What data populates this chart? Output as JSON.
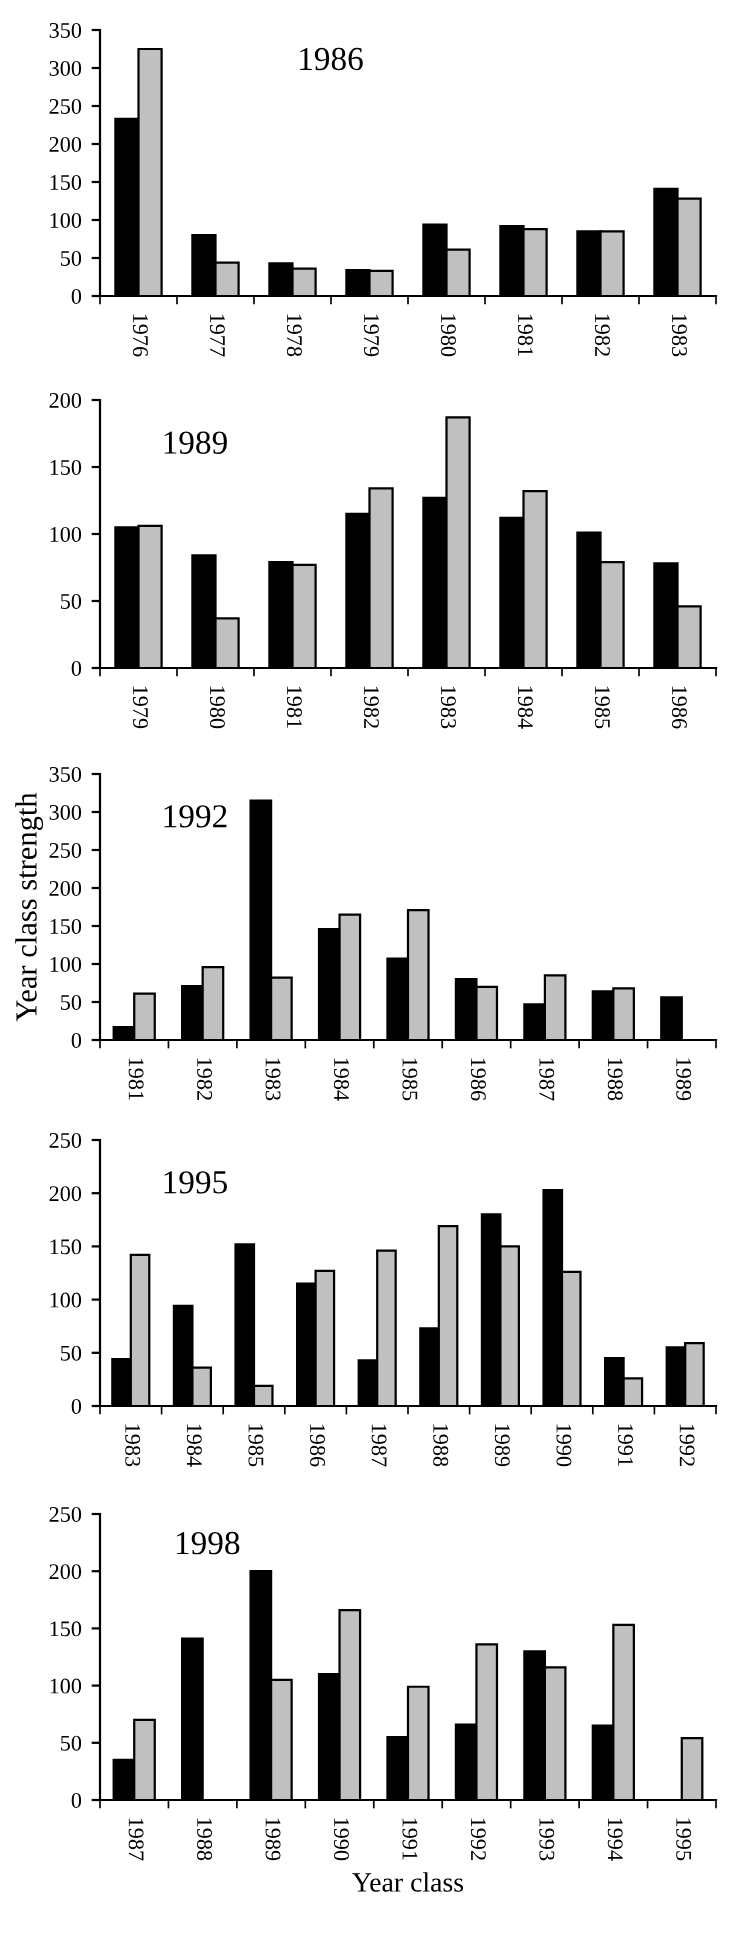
{
  "chart_data": [
    {
      "type": "bar",
      "title": "1986",
      "categories": [
        "1976",
        "1977",
        "1978",
        "1979",
        "1980",
        "1981",
        "1982",
        "1983"
      ],
      "series": [
        {
          "color": "#000000",
          "values": [
            233,
            80,
            43,
            34,
            94,
            92,
            85,
            141
          ]
        },
        {
          "color": "#c0c0c0",
          "values": [
            325,
            44,
            36,
            33,
            61,
            88,
            85,
            128
          ]
        }
      ],
      "ylim": [
        0,
        350
      ],
      "yticks": [
        0,
        50,
        100,
        150,
        200,
        250,
        300,
        350
      ]
    },
    {
      "type": "bar",
      "title": "1989",
      "categories": [
        "1979",
        "1980",
        "1981",
        "1982",
        "1983",
        "1984",
        "1985",
        "1986"
      ],
      "series": [
        {
          "color": "#000000",
          "values": [
            105,
            84,
            79,
            115,
            127,
            112,
            101,
            78
          ]
        },
        {
          "color": "#c0c0c0",
          "values": [
            106,
            37,
            77,
            134,
            187,
            132,
            79,
            46
          ]
        }
      ],
      "ylim": [
        0,
        200
      ],
      "yticks": [
        0,
        50,
        100,
        150,
        200
      ]
    },
    {
      "type": "bar",
      "title": "1992",
      "ylabel": "Year class strength",
      "categories": [
        "1981",
        "1982",
        "1983",
        "1984",
        "1985",
        "1986",
        "1987",
        "1988",
        "1989"
      ],
      "series": [
        {
          "color": "#000000",
          "values": [
            17,
            71,
            315,
            146,
            107,
            80,
            47,
            64,
            56
          ]
        },
        {
          "color": "#c0c0c0",
          "values": [
            61,
            96,
            82,
            165,
            171,
            70,
            85,
            68,
            null
          ]
        }
      ],
      "ylim": [
        0,
        350
      ],
      "yticks": [
        0,
        50,
        100,
        150,
        200,
        250,
        300,
        350
      ]
    },
    {
      "type": "bar",
      "title": "1995",
      "categories": [
        "1983",
        "1984",
        "1985",
        "1986",
        "1987",
        "1988",
        "1989",
        "1990",
        "1991",
        "1992"
      ],
      "series": [
        {
          "color": "#000000",
          "values": [
            44,
            94,
            152,
            115,
            43,
            73,
            180,
            203,
            45,
            55
          ]
        },
        {
          "color": "#c0c0c0",
          "values": [
            142,
            36,
            19,
            127,
            146,
            169,
            150,
            126,
            26,
            59
          ]
        }
      ],
      "ylim": [
        0,
        250
      ],
      "yticks": [
        0,
        50,
        100,
        150,
        200,
        250
      ]
    },
    {
      "type": "bar",
      "title": "1998",
      "xlabel": "Year class",
      "categories": [
        "1987",
        "1988",
        "1989",
        "1990",
        "1991",
        "1992",
        "1993",
        "1994",
        "1995"
      ],
      "series": [
        {
          "color": "#000000",
          "values": [
            35,
            141,
            200,
            110,
            55,
            66,
            130,
            65,
            null
          ]
        },
        {
          "color": "#c0c0c0",
          "values": [
            70,
            null,
            105,
            166,
            99,
            136,
            116,
            153,
            54
          ]
        }
      ],
      "ylim": [
        0,
        250
      ],
      "yticks": [
        0,
        50,
        100,
        150,
        200,
        250
      ]
    }
  ]
}
